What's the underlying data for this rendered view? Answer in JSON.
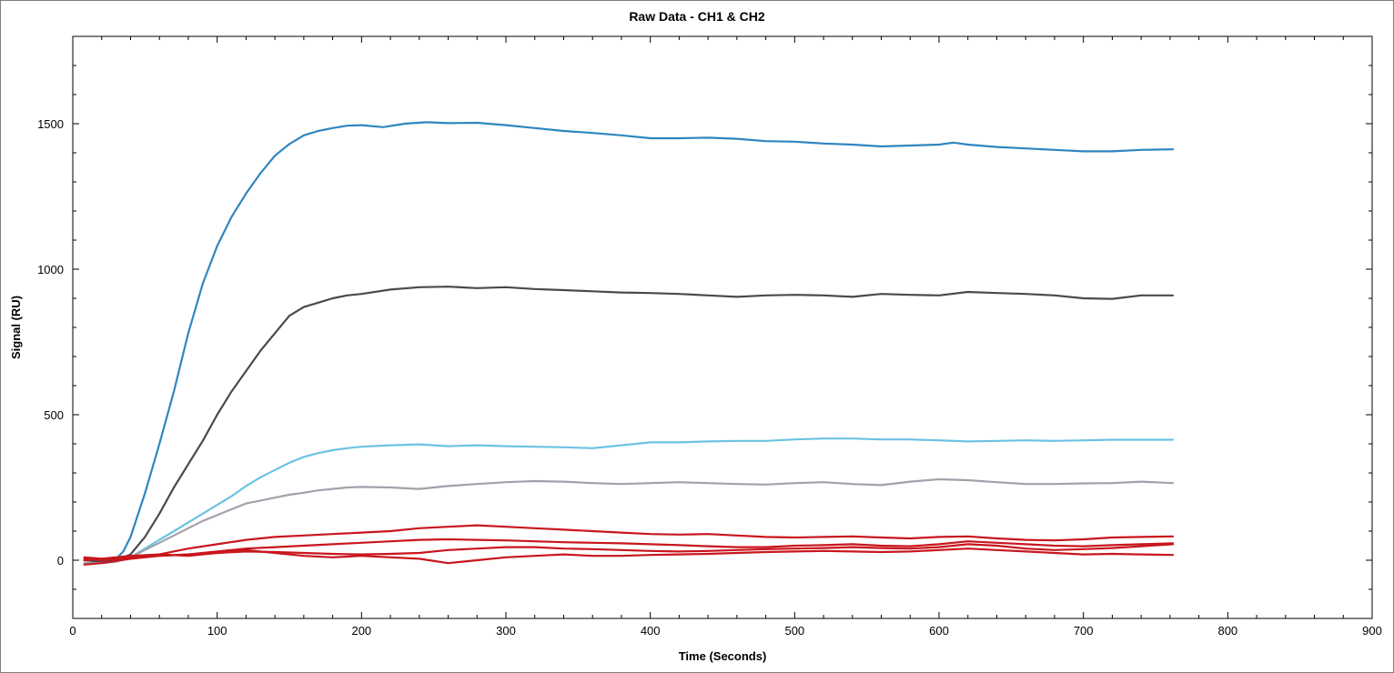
{
  "chart_data": {
    "type": "line",
    "title": "Raw Data - CH1 & CH2",
    "xlabel": "Time (Seconds)",
    "ylabel": "Signal (RU)",
    "xlim": [
      0,
      900
    ],
    "ylim": [
      -200,
      1800
    ],
    "xticks": [
      0,
      100,
      200,
      300,
      400,
      500,
      600,
      700,
      800,
      900
    ],
    "yticks": [
      0,
      500,
      1000,
      1500
    ],
    "grid": false,
    "legend": "none",
    "series": [
      {
        "color": "#2f86c0",
        "x": [
          8,
          20,
          30,
          35,
          40,
          50,
          60,
          70,
          80,
          90,
          100,
          110,
          120,
          130,
          140,
          150,
          160,
          170,
          180,
          190,
          200,
          215,
          230,
          245,
          260,
          280,
          300,
          320,
          340,
          360,
          380,
          400,
          420,
          440,
          460,
          480,
          500,
          520,
          540,
          560,
          580,
          600,
          610,
          620,
          640,
          660,
          680,
          700,
          720,
          740,
          762
        ],
        "y": [
          0,
          -5,
          5,
          30,
          80,
          230,
          400,
          580,
          780,
          950,
          1080,
          1180,
          1260,
          1330,
          1390,
          1430,
          1460,
          1475,
          1485,
          1493,
          1495,
          1488,
          1500,
          1505,
          1502,
          1503,
          1495,
          1485,
          1475,
          1468,
          1460,
          1450,
          1450,
          1452,
          1448,
          1440,
          1438,
          1432,
          1428,
          1422,
          1425,
          1428,
          1435,
          1428,
          1420,
          1415,
          1410,
          1405,
          1405,
          1410,
          1412
        ]
      },
      {
        "color": "#4a4a4a",
        "x": [
          8,
          20,
          30,
          40,
          50,
          60,
          70,
          80,
          90,
          100,
          110,
          120,
          130,
          140,
          150,
          160,
          170,
          180,
          190,
          200,
          220,
          240,
          260,
          280,
          300,
          320,
          340,
          360,
          380,
          400,
          420,
          440,
          460,
          480,
          500,
          520,
          540,
          560,
          580,
          600,
          620,
          640,
          660,
          680,
          700,
          720,
          740,
          762
        ],
        "y": [
          0,
          -5,
          0,
          20,
          80,
          160,
          250,
          330,
          410,
          500,
          580,
          650,
          720,
          780,
          840,
          870,
          885,
          900,
          910,
          915,
          930,
          938,
          940,
          935,
          938,
          932,
          928,
          924,
          920,
          918,
          915,
          910,
          905,
          910,
          912,
          910,
          905,
          915,
          912,
          910,
          922,
          918,
          915,
          910,
          900,
          898,
          910,
          910
        ]
      },
      {
        "color": "#6cc2e2",
        "x": [
          8,
          20,
          30,
          40,
          50,
          60,
          70,
          80,
          90,
          100,
          110,
          120,
          130,
          140,
          150,
          160,
          170,
          180,
          190,
          200,
          220,
          240,
          260,
          280,
          300,
          320,
          340,
          360,
          380,
          400,
          420,
          440,
          460,
          480,
          500,
          520,
          540,
          560,
          580,
          600,
          620,
          640,
          660,
          680,
          700,
          720,
          740,
          762
        ],
        "y": [
          -10,
          -10,
          -5,
          10,
          40,
          70,
          100,
          130,
          160,
          190,
          220,
          255,
          285,
          310,
          335,
          355,
          368,
          378,
          385,
          390,
          395,
          398,
          392,
          395,
          392,
          390,
          388,
          385,
          395,
          405,
          405,
          408,
          410,
          410,
          415,
          418,
          418,
          415,
          415,
          412,
          408,
          410,
          412,
          410,
          412,
          414,
          414,
          414
        ]
      },
      {
        "color": "#a2a1ab",
        "x": [
          8,
          20,
          30,
          40,
          50,
          60,
          70,
          80,
          90,
          100,
          110,
          120,
          130,
          140,
          150,
          160,
          170,
          180,
          190,
          200,
          220,
          240,
          260,
          280,
          300,
          320,
          340,
          360,
          380,
          400,
          420,
          440,
          460,
          480,
          500,
          520,
          540,
          560,
          580,
          600,
          620,
          640,
          660,
          680,
          700,
          720,
          740,
          762
        ],
        "y": [
          -10,
          -10,
          -5,
          10,
          35,
          60,
          85,
          110,
          135,
          155,
          175,
          195,
          205,
          215,
          225,
          232,
          240,
          245,
          250,
          252,
          250,
          245,
          255,
          262,
          268,
          272,
          270,
          265,
          262,
          265,
          268,
          265,
          262,
          260,
          265,
          268,
          262,
          258,
          270,
          278,
          275,
          268,
          262,
          262,
          264,
          265,
          270,
          265
        ]
      },
      {
        "color": "#c8161d",
        "x": [
          8,
          20,
          40,
          60,
          80,
          100,
          120,
          140,
          160,
          180,
          200,
          220,
          240,
          260,
          280,
          300,
          320,
          340,
          360,
          380,
          400,
          420,
          440,
          460,
          480,
          500,
          520,
          540,
          560,
          580,
          600,
          620,
          640,
          660,
          680,
          700,
          720,
          740,
          762
        ],
        "y": [
          10,
          5,
          15,
          20,
          40,
          55,
          70,
          80,
          85,
          90,
          95,
          100,
          110,
          115,
          120,
          115,
          110,
          105,
          100,
          95,
          90,
          88,
          90,
          85,
          80,
          78,
          80,
          82,
          78,
          75,
          80,
          82,
          75,
          70,
          68,
          72,
          78,
          80,
          82
        ]
      },
      {
        "color": "#c8161d",
        "x": [
          8,
          20,
          40,
          60,
          80,
          100,
          120,
          140,
          160,
          180,
          200,
          220,
          240,
          260,
          280,
          300,
          320,
          340,
          360,
          380,
          400,
          420,
          440,
          460,
          480,
          500,
          520,
          540,
          560,
          580,
          600,
          620,
          640,
          660,
          680,
          700,
          720,
          740,
          762
        ],
        "y": [
          -15,
          -10,
          5,
          15,
          20,
          30,
          40,
          45,
          50,
          55,
          60,
          65,
          70,
          72,
          70,
          68,
          65,
          62,
          60,
          58,
          55,
          52,
          48,
          45,
          45,
          50,
          52,
          55,
          50,
          48,
          55,
          65,
          60,
          55,
          50,
          48,
          52,
          55,
          58
        ]
      },
      {
        "color": "#c8161d",
        "x": [
          8,
          20,
          40,
          60,
          80,
          100,
          120,
          140,
          160,
          180,
          200,
          220,
          240,
          260,
          280,
          300,
          320,
          340,
          360,
          380,
          400,
          420,
          440,
          460,
          480,
          500,
          520,
          540,
          560,
          580,
          600,
          620,
          640,
          660,
          680,
          700,
          720,
          740,
          762
        ],
        "y": [
          0,
          5,
          10,
          15,
          20,
          25,
          30,
          28,
          25,
          22,
          20,
          22,
          25,
          35,
          40,
          45,
          45,
          40,
          38,
          35,
          32,
          30,
          32,
          35,
          38,
          40,
          42,
          45,
          42,
          40,
          45,
          55,
          50,
          40,
          35,
          38,
          42,
          48,
          55
        ]
      },
      {
        "color": "#c8161d",
        "x": [
          8,
          20,
          40,
          60,
          80,
          100,
          120,
          140,
          160,
          180,
          200,
          220,
          240,
          260,
          280,
          300,
          320,
          340,
          360,
          380,
          400,
          420,
          440,
          460,
          480,
          500,
          520,
          540,
          560,
          580,
          600,
          620,
          640,
          660,
          680,
          700,
          720,
          740,
          762
        ],
        "y": [
          5,
          0,
          10,
          20,
          15,
          25,
          35,
          25,
          15,
          10,
          15,
          10,
          5,
          -10,
          0,
          10,
          15,
          20,
          15,
          15,
          18,
          20,
          22,
          25,
          28,
          30,
          32,
          30,
          28,
          30,
          35,
          40,
          35,
          30,
          25,
          20,
          22,
          20,
          18
        ]
      }
    ]
  }
}
